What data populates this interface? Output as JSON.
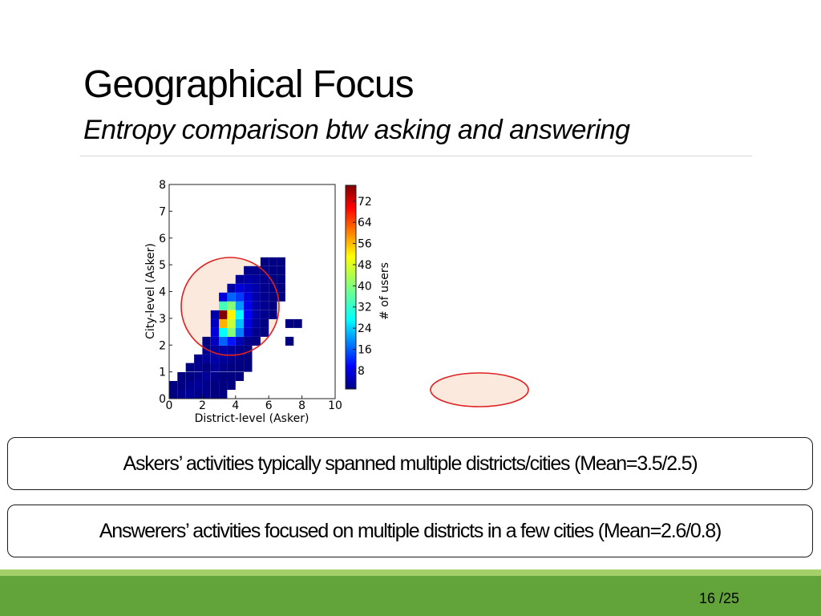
{
  "slide": {
    "title": "Geographical Focus",
    "subtitle": "Entropy comparison btw asking and answering",
    "callouts": [
      "Askers’ activities typically spanned multiple districts/cities (Mean=3.5/2.5)",
      "Answerers’ activities focused on multiple districts in a few cities (Mean=2.6/0.8)"
    ],
    "page_number": "16 /25",
    "colors": {
      "footer_band": "#62a33a",
      "footer_stripe": "#a5d069",
      "highlight_stroke": "#e02020",
      "highlight_fill": "#fbe9dd"
    }
  },
  "chart_data": {
    "type": "heatmap",
    "title": "",
    "xlabel": "District-level (Asker)",
    "ylabel": "City-level (Asker)",
    "xlim": [
      0,
      10
    ],
    "ylim": [
      0,
      8
    ],
    "xticks": [
      "0",
      "2",
      "4",
      "6",
      "8",
      "10"
    ],
    "yticks": [
      "0",
      "1",
      "2",
      "3",
      "4",
      "5",
      "6",
      "7",
      "8"
    ],
    "bin_width_x": 0.5,
    "bin_height_y": 0.33,
    "colorbar": {
      "label": "# of users",
      "min": 1,
      "max": 78,
      "ticks": [
        "8",
        "16",
        "24",
        "32",
        "40",
        "48",
        "56",
        "64",
        "72"
      ],
      "colormap": "jet"
    },
    "cells": [
      [
        0,
        0,
        1
      ],
      [
        0.5,
        0,
        2
      ],
      [
        1,
        0,
        3
      ],
      [
        1.5,
        0,
        2
      ],
      [
        2,
        0,
        2
      ],
      [
        2.5,
        0,
        1
      ],
      [
        3,
        0,
        1
      ],
      [
        0,
        0.33,
        1
      ],
      [
        0.5,
        0.33,
        1
      ],
      [
        1,
        0.33,
        2
      ],
      [
        1.5,
        0.33,
        3
      ],
      [
        2,
        0.33,
        2
      ],
      [
        2.5,
        0.33,
        1
      ],
      [
        3,
        0.33,
        1
      ],
      [
        3.5,
        0.33,
        1
      ],
      [
        0.5,
        0.66,
        1
      ],
      [
        1,
        0.66,
        1
      ],
      [
        1.5,
        0.66,
        2
      ],
      [
        2,
        0.66,
        3
      ],
      [
        2.5,
        0.66,
        2
      ],
      [
        3,
        0.66,
        2
      ],
      [
        3.5,
        0.66,
        1
      ],
      [
        4,
        0.66,
        1
      ],
      [
        1,
        1.0,
        1
      ],
      [
        1.5,
        1.0,
        2
      ],
      [
        2,
        1.0,
        3
      ],
      [
        2.5,
        1.0,
        3
      ],
      [
        3,
        1.0,
        2
      ],
      [
        3.5,
        1.0,
        1
      ],
      [
        4,
        1.0,
        1
      ],
      [
        1.5,
        1.32,
        2
      ],
      [
        2,
        1.32,
        3
      ],
      [
        2.5,
        1.32,
        4
      ],
      [
        3,
        1.32,
        3
      ],
      [
        3.5,
        1.32,
        2
      ],
      [
        4,
        1.32,
        1
      ],
      [
        4.5,
        1.32,
        1
      ],
      [
        2,
        1.65,
        2
      ],
      [
        2.5,
        1.65,
        3
      ],
      [
        3,
        1.65,
        4
      ],
      [
        3.5,
        1.65,
        3
      ],
      [
        4,
        1.65,
        2
      ],
      [
        4.5,
        1.65,
        1
      ],
      [
        2,
        1.98,
        1
      ],
      [
        2.5,
        1.98,
        6
      ],
      [
        3,
        1.98,
        18
      ],
      [
        3.5,
        1.98,
        12
      ],
      [
        4,
        1.98,
        5
      ],
      [
        4.5,
        1.98,
        2
      ],
      [
        5,
        1.98,
        1
      ],
      [
        2.5,
        2.31,
        8
      ],
      [
        3,
        2.31,
        30
      ],
      [
        3.5,
        2.31,
        40
      ],
      [
        4,
        2.31,
        20
      ],
      [
        4.5,
        2.31,
        6
      ],
      [
        5,
        2.31,
        2
      ],
      [
        5.5,
        2.31,
        1
      ],
      [
        2.5,
        2.64,
        6
      ],
      [
        3,
        2.64,
        55
      ],
      [
        3.5,
        2.64,
        45
      ],
      [
        4,
        2.64,
        25
      ],
      [
        4.5,
        2.64,
        8
      ],
      [
        5,
        2.64,
        3
      ],
      [
        5.5,
        2.64,
        1
      ],
      [
        2.5,
        2.97,
        4
      ],
      [
        3,
        2.97,
        78
      ],
      [
        3.5,
        2.97,
        50
      ],
      [
        4,
        2.97,
        30
      ],
      [
        4.5,
        2.97,
        10
      ],
      [
        5,
        2.97,
        4
      ],
      [
        5.5,
        2.97,
        2
      ],
      [
        6,
        2.97,
        1
      ],
      [
        3,
        3.3,
        35
      ],
      [
        3.5,
        3.3,
        40
      ],
      [
        4,
        3.3,
        22
      ],
      [
        4.5,
        3.3,
        9
      ],
      [
        5,
        3.3,
        4
      ],
      [
        5.5,
        3.3,
        2
      ],
      [
        6,
        3.3,
        1
      ],
      [
        3,
        3.63,
        8
      ],
      [
        3.5,
        3.63,
        18
      ],
      [
        4,
        3.63,
        15
      ],
      [
        4.5,
        3.63,
        8
      ],
      [
        5,
        3.63,
        4
      ],
      [
        5.5,
        3.63,
        2
      ],
      [
        6,
        3.63,
        1
      ],
      [
        6.5,
        3.63,
        1
      ],
      [
        3.5,
        3.96,
        4
      ],
      [
        4,
        3.96,
        8
      ],
      [
        4.5,
        3.96,
        6
      ],
      [
        5,
        3.96,
        4
      ],
      [
        5.5,
        3.96,
        2
      ],
      [
        6,
        3.96,
        1
      ],
      [
        6.5,
        3.96,
        1
      ],
      [
        4,
        4.29,
        3
      ],
      [
        4.5,
        4.29,
        4
      ],
      [
        5,
        4.29,
        3
      ],
      [
        5.5,
        4.29,
        2
      ],
      [
        6,
        4.29,
        1
      ],
      [
        6.5,
        4.29,
        1
      ],
      [
        4.5,
        4.62,
        2
      ],
      [
        5,
        4.62,
        2
      ],
      [
        5.5,
        4.62,
        1
      ],
      [
        6,
        4.62,
        1
      ],
      [
        6.5,
        4.62,
        1
      ],
      [
        5.5,
        4.95,
        1
      ],
      [
        6,
        4.95,
        1
      ],
      [
        6.5,
        4.95,
        1
      ],
      [
        7,
        2.64,
        1
      ],
      [
        7,
        1.98,
        1
      ],
      [
        7.5,
        2.64,
        1
      ],
      [
        4.5,
        1.0,
        1
      ],
      [
        2,
        0.99,
        1
      ],
      [
        3,
        0.66,
        1
      ]
    ]
  }
}
